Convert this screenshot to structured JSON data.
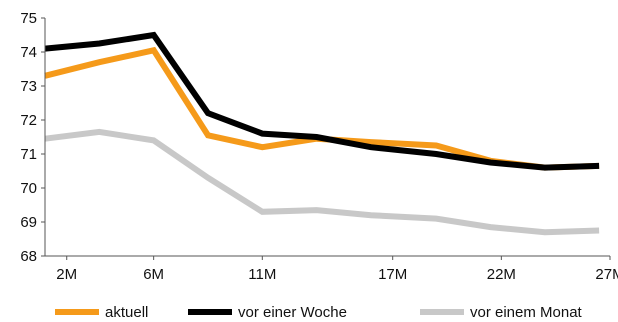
{
  "chart_data": {
    "type": "line",
    "title": "",
    "xlabel": "",
    "ylabel": "",
    "ylim": [
      68,
      75
    ],
    "yticks": [
      68,
      69,
      70,
      71,
      72,
      73,
      74,
      75
    ],
    "xlim": [
      1,
      27
    ],
    "xticks": [
      {
        "value": 2,
        "label": "2M"
      },
      {
        "value": 6,
        "label": "6M"
      },
      {
        "value": 11,
        "label": "11M"
      },
      {
        "value": 17,
        "label": "17M"
      },
      {
        "value": 22,
        "label": "22M"
      },
      {
        "value": 27,
        "label": "27M"
      }
    ],
    "x": [
      1,
      3.5,
      6,
      8.5,
      11,
      13.5,
      16,
      19,
      21.5,
      24,
      26.5
    ],
    "series": [
      {
        "name": "aktuell",
        "color": "#f59a1a",
        "values": [
          73.3,
          73.7,
          74.05,
          71.55,
          71.2,
          71.45,
          71.35,
          71.25,
          70.8,
          70.6,
          70.65
        ]
      },
      {
        "name": "vor einer Woche",
        "color": "#000000",
        "values": [
          74.1,
          74.25,
          74.5,
          72.2,
          71.6,
          71.5,
          71.2,
          71.0,
          70.75,
          70.6,
          70.65
        ]
      },
      {
        "name": "vor einem Monat",
        "color": "#c8c8c8",
        "values": [
          71.45,
          71.65,
          71.4,
          70.3,
          69.3,
          69.35,
          69.2,
          69.1,
          68.85,
          68.7,
          68.75
        ]
      }
    ],
    "grid": false,
    "legend_position": "bottom"
  }
}
